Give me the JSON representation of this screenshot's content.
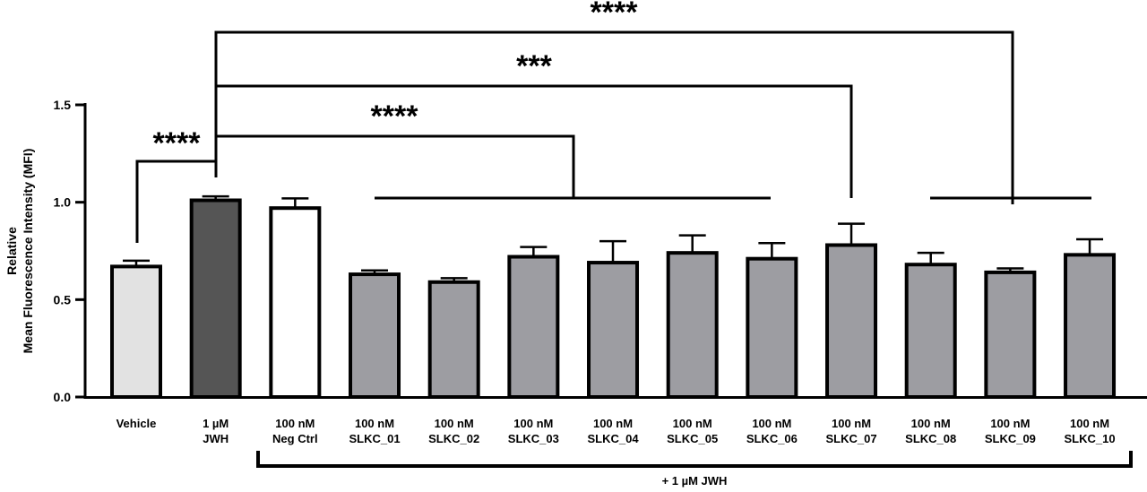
{
  "chart_data": {
    "type": "bar",
    "ylabel_line1": "Relative",
    "ylabel_line2": "Mean Fluorescence Intensity (MFI)",
    "ylim": [
      0,
      1.5
    ],
    "yticks": [
      "0.0",
      "0.5",
      "1.0",
      "1.5"
    ],
    "ytick_values": [
      0,
      0.5,
      1.0,
      1.5
    ],
    "categories": [
      {
        "line1": "Vehicle",
        "line2": ""
      },
      {
        "line1": "1 µM",
        "line2": "JWH"
      },
      {
        "line1": "100 nM",
        "line2": "Neg Ctrl"
      },
      {
        "line1": "100 nM",
        "line2": "SLKC_01"
      },
      {
        "line1": "100 nM",
        "line2": "SLKC_02"
      },
      {
        "line1": "100 nM",
        "line2": "SLKC_03"
      },
      {
        "line1": "100 nM",
        "line2": "SLKC_04"
      },
      {
        "line1": "100 nM",
        "line2": "SLKC_05"
      },
      {
        "line1": "100 nM",
        "line2": "SLKC_06"
      },
      {
        "line1": "100 nM",
        "line2": "SLKC_07"
      },
      {
        "line1": "100 nM",
        "line2": "SLKC_08"
      },
      {
        "line1": "100 nM",
        "line2": "SLKC_09"
      },
      {
        "line1": "100 nM",
        "line2": "SLKC_10"
      }
    ],
    "values": [
      0.67,
      1.01,
      0.97,
      0.63,
      0.59,
      0.72,
      0.69,
      0.74,
      0.71,
      0.78,
      0.68,
      0.64,
      0.73
    ],
    "errors": [
      0.03,
      0.02,
      0.05,
      0.02,
      0.02,
      0.05,
      0.11,
      0.09,
      0.08,
      0.11,
      0.06,
      0.02,
      0.08
    ],
    "colors": [
      "#e2e2e2",
      "#555555",
      "#ffffff",
      "#9d9da2",
      "#9d9da2",
      "#9d9da2",
      "#9d9da2",
      "#9d9da2",
      "#9d9da2",
      "#9d9da2",
      "#9d9da2",
      "#9d9da2",
      "#9d9da2"
    ],
    "group_label": "+ 1 µM JWH",
    "significance": [
      "****",
      "****",
      "***",
      "****"
    ]
  }
}
